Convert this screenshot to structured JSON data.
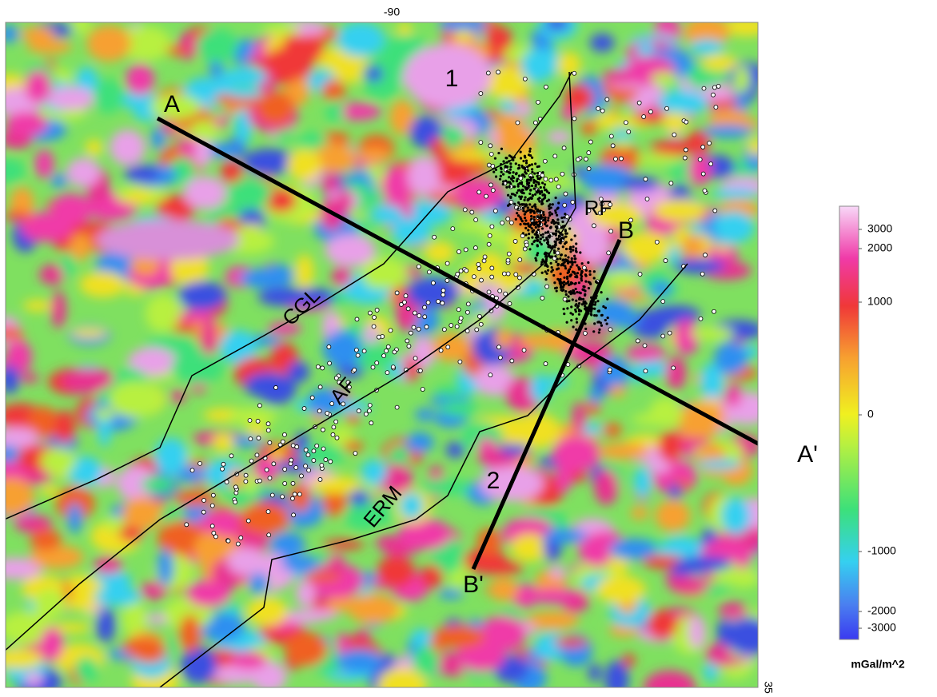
{
  "map": {
    "axis_labels": {
      "top": "-90",
      "right": "35"
    },
    "anomalies": [
      "1",
      "2"
    ],
    "profiles": {
      "a_start": "A",
      "a_end": "A'",
      "b_start": "B",
      "b_end": "B'"
    },
    "structures": [
      "RF",
      "CGL",
      "AF",
      "ERM"
    ],
    "colorbar": {
      "ticks": [
        3000,
        2000,
        1000,
        0,
        -1000,
        -2000,
        -3000
      ],
      "unit": "mGal/m^2"
    }
  }
}
